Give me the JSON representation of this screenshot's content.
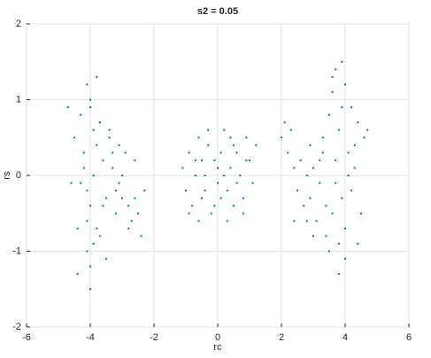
{
  "chart_data": {
    "type": "scatter",
    "title": "s2 = 0.05",
    "x_label": "rc",
    "y_label": "rs",
    "color": "#0072bd",
    "grid": true,
    "xlim": [
      -6,
      6
    ],
    "ylim": [
      -2,
      2
    ],
    "xticks": [
      -6,
      -4,
      -2,
      0,
      2,
      4,
      6
    ],
    "yticks": [
      -2,
      -1,
      0,
      1,
      2
    ],
    "x": [
      -4.1,
      -4.0,
      -3.9,
      -4.2,
      -4.3,
      -4.0,
      -3.8,
      -4.1,
      -4.4,
      -4.5,
      -3.7,
      -3.6,
      -3.5,
      -3.4,
      -3.3,
      -3.2,
      -3.1,
      -3.0,
      -2.9,
      -2.8,
      -2.7,
      -2.6,
      -2.5,
      -2.4,
      -2.3,
      -4.6,
      -4.7,
      -4.0,
      -3.9,
      -4.1,
      -4.2,
      -3.8,
      -3.7,
      -3.5,
      -3.3,
      -3.0,
      -2.8,
      -4.3,
      -4.0,
      -3.6,
      -3.9,
      -4.1,
      -3.4,
      -3.2,
      -2.6,
      -4.4,
      -3.8,
      -4.0,
      -3.7,
      -3.1,
      -1.1,
      -1.0,
      -0.9,
      -0.8,
      -0.7,
      -0.6,
      -0.5,
      -0.4,
      -0.3,
      -0.2,
      -0.1,
      0.0,
      0.1,
      0.2,
      0.3,
      0.4,
      0.5,
      0.6,
      0.7,
      0.8,
      0.9,
      1.0,
      1.1,
      1.2,
      -0.9,
      -0.6,
      -0.3,
      0.0,
      0.3,
      0.6,
      0.9,
      -0.7,
      -0.4,
      -0.1,
      0.2,
      0.5,
      0.8,
      -0.5,
      0.1,
      0.4,
      2.0,
      2.1,
      2.2,
      2.3,
      2.4,
      2.5,
      2.6,
      2.7,
      2.8,
      2.9,
      3.0,
      3.1,
      3.2,
      3.3,
      3.4,
      3.5,
      3.6,
      3.7,
      3.8,
      3.9,
      4.0,
      4.1,
      4.2,
      4.3,
      4.4,
      4.5,
      4.6,
      3.6,
      3.8,
      4.0,
      3.7,
      3.9,
      4.1,
      3.5,
      3.3,
      3.0,
      2.8,
      4.2,
      4.4,
      3.9,
      3.6,
      3.4,
      3.8,
      4.0,
      4.3,
      2.4,
      2.9,
      3.2,
      3.7,
      4.7
    ],
    "y": [
      1.2,
      0.9,
      0.6,
      0.3,
      -0.1,
      -0.4,
      -0.7,
      -1.0,
      -1.3,
      0.5,
      0.7,
      0.2,
      -0.3,
      0.6,
      0.1,
      -0.2,
      0.4,
      0.0,
      0.3,
      -0.4,
      -0.6,
      -0.3,
      -0.5,
      -0.8,
      -0.2,
      -0.1,
      0.9,
      -1.5,
      -0.9,
      -0.6,
      0.1,
      0.4,
      -0.8,
      -1.1,
      0.3,
      -0.3,
      -0.7,
      0.8,
      1.0,
      -0.4,
      0.0,
      -0.2,
      0.5,
      -0.5,
      0.2,
      -0.7,
      1.3,
      -1.2,
      0.7,
      -0.1,
      0.1,
      -0.2,
      0.3,
      -0.4,
      0.2,
      0.5,
      -0.3,
      0.0,
      0.4,
      -0.5,
      0.2,
      -0.1,
      0.3,
      0.6,
      -0.2,
      0.1,
      -0.4,
      0.3,
      0.0,
      -0.3,
      0.5,
      0.2,
      -0.1,
      0.4,
      -0.5,
      -0.6,
      0.6,
      0.1,
      -0.6,
      -0.1,
      0.2,
      0.0,
      -0.2,
      -0.4,
      0.0,
      0.4,
      -0.5,
      0.2,
      -0.3,
      0.5,
      0.5,
      0.7,
      0.3,
      0.6,
      0.1,
      -0.2,
      0.2,
      -0.4,
      0.0,
      -0.3,
      0.1,
      -0.6,
      -0.1,
      0.3,
      -0.8,
      0.8,
      1.1,
      1.4,
      0.6,
      0.9,
      1.2,
      0.3,
      -0.2,
      0.4,
      0.7,
      -0.5,
      0.5,
      -0.5,
      -0.9,
      -1.1,
      0.2,
      -0.3,
      0.0,
      -1.0,
      0.5,
      -0.8,
      -0.6,
      0.9,
      -0.9,
      1.5,
      1.3,
      -0.4,
      -1.3,
      -0.7,
      0.1,
      -0.6,
      0.4,
      0.2,
      -0.1,
      0.6
    ]
  }
}
